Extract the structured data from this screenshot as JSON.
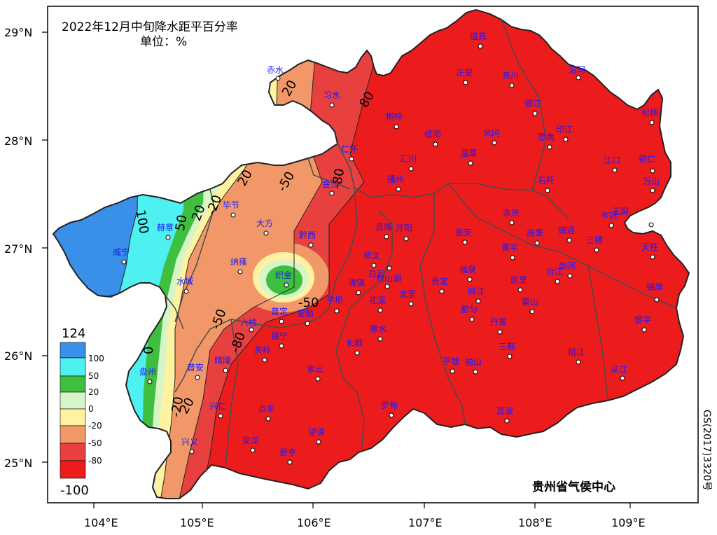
{
  "title": {
    "line1": "2022年12月中旬降水距平百分率",
    "line2": "单位：%"
  },
  "credit": "贵州省气侯中心",
  "approval_number": "GS(2017)3320号",
  "axes": {
    "lat_labels": [
      "29°N",
      "28°N",
      "27°N",
      "26°N",
      "25°N"
    ],
    "lon_labels": [
      "104°E",
      "105°E",
      "106°E",
      "107°E",
      "108°E",
      "109°E"
    ]
  },
  "legend": {
    "top": "124",
    "bottom": "-100",
    "ticks": [
      "100",
      "50",
      "20",
      "0",
      "-20",
      "-50",
      "-80"
    ],
    "colors": [
      "#3a8fe8",
      "#4ef0f0",
      "#3fbf3f",
      "#d8f5c8",
      "#fff2a0",
      "#f29868",
      "#e8403f",
      "#ec1c1c"
    ]
  },
  "contour_labels": [
    "20",
    "80",
    "20",
    "-50",
    "-50",
    "100",
    "50",
    "20",
    "-20",
    "-50",
    "-80",
    "0",
    "-20",
    "-80",
    "20"
  ],
  "cities": [
    {
      "name": "赤水"
    },
    {
      "name": "习水"
    },
    {
      "name": "道真"
    },
    {
      "name": "正安"
    },
    {
      "name": "务川"
    },
    {
      "name": "沿河"
    },
    {
      "name": "桐梓"
    },
    {
      "name": "绥阳"
    },
    {
      "name": "凤冈"
    },
    {
      "name": "德江"
    },
    {
      "name": "印江"
    },
    {
      "name": "松桃"
    },
    {
      "name": "仁怀"
    },
    {
      "name": "汇川"
    },
    {
      "name": "湄潭"
    },
    {
      "name": "思南"
    },
    {
      "name": "江口"
    },
    {
      "name": "铜仁"
    },
    {
      "name": "金沙"
    },
    {
      "name": "播州"
    },
    {
      "name": "石阡"
    },
    {
      "name": "万山"
    },
    {
      "name": "毕节"
    },
    {
      "name": "大方"
    },
    {
      "name": "余庆"
    },
    {
      "name": "赫章"
    },
    {
      "name": "黔西"
    },
    {
      "name": "息烽"
    },
    {
      "name": "开阳"
    },
    {
      "name": "瓮安"
    },
    {
      "name": "施秉"
    },
    {
      "name": "镇远"
    },
    {
      "name": "岑巩"
    },
    {
      "name": "玉屏"
    },
    {
      "name": "三穗"
    },
    {
      "name": "天柱"
    },
    {
      "name": "威宁"
    },
    {
      "name": "纳雍"
    },
    {
      "name": "修文"
    },
    {
      "name": "黄平"
    },
    {
      "name": "织金"
    },
    {
      "name": "白云"
    },
    {
      "name": "福泉"
    },
    {
      "name": "凯里"
    },
    {
      "name": "台江"
    },
    {
      "name": "剑河"
    },
    {
      "name": "水城"
    },
    {
      "name": "清镇"
    },
    {
      "name": "观山湖"
    },
    {
      "name": "贵定"
    },
    {
      "name": "麻江"
    },
    {
      "name": "雷山"
    },
    {
      "name": "锦屏"
    },
    {
      "name": "花溪"
    },
    {
      "name": "龙里"
    },
    {
      "name": "平坝"
    },
    {
      "name": "都匀"
    },
    {
      "name": "普定"
    },
    {
      "name": "安顺"
    },
    {
      "name": "六枝"
    },
    {
      "name": "惠水"
    },
    {
      "name": "丹寨"
    },
    {
      "name": "黎平"
    },
    {
      "name": "镇宁"
    },
    {
      "name": "长顺"
    },
    {
      "name": "关岭"
    },
    {
      "name": "三都"
    },
    {
      "name": "盘州"
    },
    {
      "name": "普安"
    },
    {
      "name": "晴隆"
    },
    {
      "name": "紫云"
    },
    {
      "name": "平塘"
    },
    {
      "name": "独山"
    },
    {
      "name": "榕江"
    },
    {
      "name": "从江"
    },
    {
      "name": "兴仁"
    },
    {
      "name": "贞丰"
    },
    {
      "name": "罗甸"
    },
    {
      "name": "荔波"
    },
    {
      "name": "兴义"
    },
    {
      "name": "安龙"
    },
    {
      "name": "望谟"
    },
    {
      "name": "册亨"
    }
  ]
}
